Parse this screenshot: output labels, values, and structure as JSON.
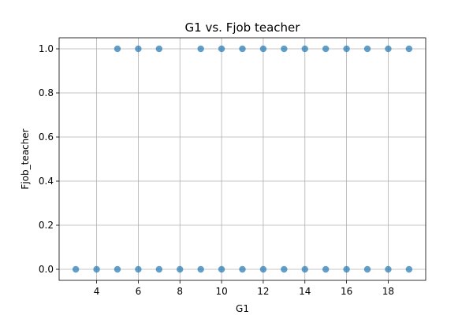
{
  "chart_data": {
    "type": "scatter",
    "title": "G1 vs. Fjob teacher",
    "xlabel": "G1",
    "ylabel": "Fjob_teacher",
    "xlim": [
      2.2,
      19.8
    ],
    "ylim": [
      -0.05,
      1.05
    ],
    "xticks": [
      4,
      6,
      8,
      10,
      12,
      14,
      16,
      18
    ],
    "yticks": [
      0.0,
      0.2,
      0.4,
      0.6,
      0.8,
      1.0
    ],
    "ytick_labels": [
      "0.0",
      "0.2",
      "0.4",
      "0.6",
      "0.8",
      "1.0"
    ],
    "grid": true,
    "color": "#1f77b4",
    "series": [
      {
        "x": [
          5,
          6,
          7,
          9,
          10,
          11,
          12,
          13,
          14,
          15,
          16,
          17,
          18,
          19,
          3,
          4,
          5,
          6,
          7,
          8,
          9,
          10,
          11,
          12,
          13,
          14,
          15,
          16,
          17,
          18,
          19
        ],
        "y": [
          1,
          1,
          1,
          1,
          1,
          1,
          1,
          1,
          1,
          1,
          1,
          1,
          1,
          1,
          0,
          0,
          0,
          0,
          0,
          0,
          0,
          0,
          0,
          0,
          0,
          0,
          0,
          0,
          0,
          0,
          0
        ]
      }
    ]
  }
}
